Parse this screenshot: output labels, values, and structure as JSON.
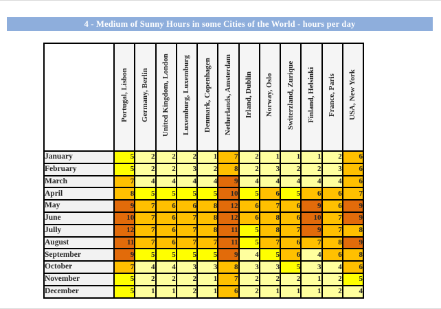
{
  "banner": {
    "text": "4 - Medium of Sunny Hours in some Cities of the World - hours per day",
    "bg_color": "#8EAEDC",
    "text_color": "#FFFFFF"
  },
  "chart_data": {
    "type": "table",
    "title": "4 - Medium of Sunny Hours in some Cities of the World - hours per day",
    "unit": "hours per day",
    "columns": [
      "Portugal, Lisbon",
      "Germany, Berlin",
      "United Kingdom, London",
      "Luxemburg, Luxemburg",
      "Denmark, Copenhagen",
      "Netherlands, Amsterdam",
      "Irland, Dublin",
      "Norway, Oslo",
      "Switerzland, Zurique",
      "Finland, Helsinki",
      "France, Paris",
      "USA, New York"
    ],
    "rows": [
      "January",
      "February",
      "March",
      "April",
      "May",
      "June",
      "Jully",
      "August",
      "September",
      "October",
      "November",
      "December"
    ],
    "values": [
      [
        5,
        2,
        2,
        2,
        1,
        7,
        2,
        1,
        1,
        1,
        2,
        6
      ],
      [
        5,
        2,
        2,
        3,
        2,
        8,
        2,
        3,
        2,
        2,
        3,
        6
      ],
      [
        7,
        4,
        4,
        4,
        4,
        9,
        4,
        4,
        4,
        4,
        4,
        6
      ],
      [
        8,
        5,
        5,
        5,
        5,
        10,
        5,
        6,
        5,
        6,
        6,
        7
      ],
      [
        9,
        7,
        6,
        6,
        8,
        12,
        6,
        7,
        6,
        9,
        6,
        9
      ],
      [
        10,
        7,
        6,
        7,
        8,
        12,
        6,
        8,
        6,
        10,
        7,
        9
      ],
      [
        12,
        7,
        6,
        7,
        8,
        11,
        5,
        8,
        7,
        9,
        7,
        8
      ],
      [
        11,
        7,
        6,
        7,
        7,
        11,
        5,
        7,
        6,
        7,
        8,
        9
      ],
      [
        9,
        5,
        5,
        5,
        5,
        9,
        4,
        5,
        6,
        4,
        6,
        8
      ],
      [
        7,
        4,
        4,
        3,
        3,
        8,
        3,
        3,
        5,
        3,
        4,
        6
      ],
      [
        5,
        2,
        2,
        2,
        1,
        7,
        2,
        2,
        2,
        1,
        2,
        5
      ],
      [
        5,
        1,
        1,
        2,
        1,
        6,
        2,
        1,
        1,
        1,
        2,
        4
      ]
    ],
    "color_bins": [
      {
        "min": 1,
        "max": 4,
        "color": "#FFFF9E"
      },
      {
        "min": 5,
        "max": 5,
        "color": "#FFFF00"
      },
      {
        "min": 6,
        "max": 8,
        "color": "#FFC000"
      },
      {
        "min": 9,
        "max": 12,
        "color": "#E26B0A"
      }
    ],
    "legend_position": "none",
    "grid": true
  }
}
